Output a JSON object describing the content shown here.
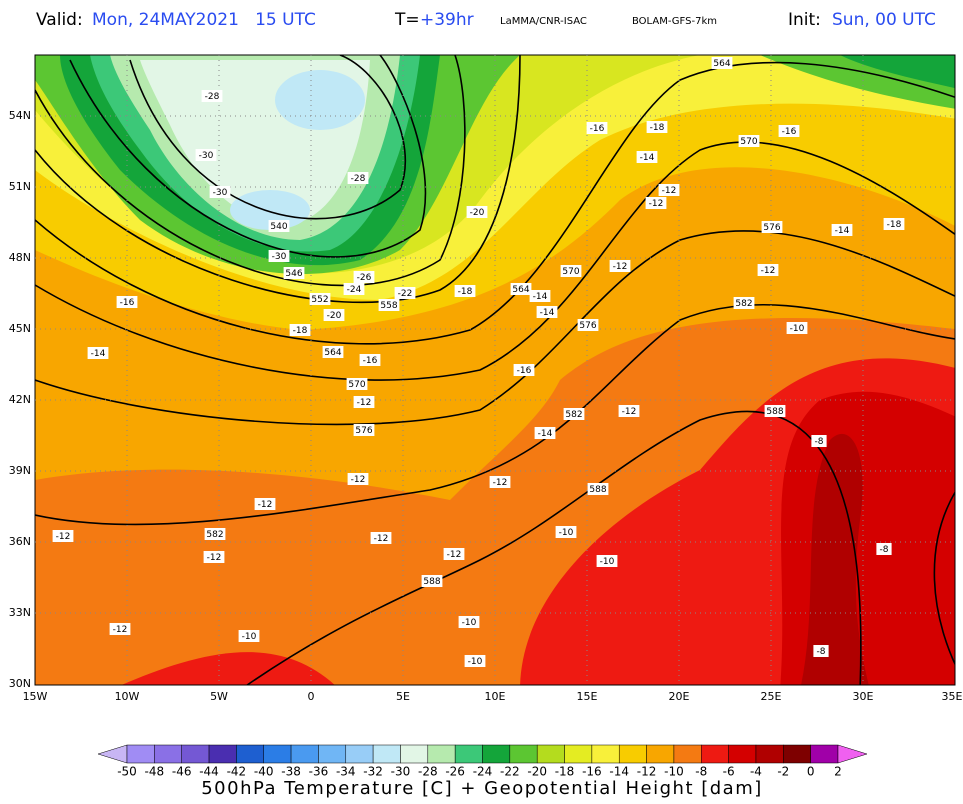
{
  "header": {
    "valid_label": "Valid:",
    "valid_value": "Mon, 24MAY2021   15 UTC",
    "t_label": "T=",
    "t_value": "+39hr",
    "source": "LaMMA/CNR-ISAC",
    "model": "BOLAM-GFS-7km",
    "init_label": "Init:",
    "init_value": "Sun, 00 UTC"
  },
  "map": {
    "lat_labels": [
      "54N",
      "51N",
      "48N",
      "45N",
      "42N",
      "39N",
      "36N",
      "33N",
      "30N"
    ],
    "lon_labels": [
      "15W",
      "10W",
      "5W",
      "0",
      "5E",
      "10E",
      "15E",
      "20E",
      "25E",
      "30E",
      "35E"
    ],
    "temperature_labels": [
      "-28",
      "-30",
      "-30",
      "-28",
      "-30",
      "-26",
      "-24",
      "-22",
      "-20",
      "-18",
      "-16",
      "-14",
      "-16",
      "-12",
      "-18",
      "-20",
      "-16",
      "-18",
      "-14",
      "-16",
      "-12",
      "-12",
      "-14",
      "-18",
      "-12",
      "-12",
      "-10",
      "-14",
      "-14",
      "-16",
      "-12",
      "-14",
      "-12",
      "-12",
      "-12",
      "-12",
      "-12",
      "-12",
      "-12",
      "-10",
      "-10",
      "-12",
      "-10",
      "-10",
      "-10",
      "-8",
      "-8",
      "-8"
    ],
    "height_labels": [
      "564",
      "570",
      "576",
      "582",
      "588",
      "540",
      "546",
      "552",
      "558",
      "564",
      "570",
      "576",
      "564",
      "570",
      "576",
      "582",
      "582",
      "588",
      "588"
    ]
  },
  "colorbar": {
    "ticks": [
      -50,
      -48,
      -46,
      -44,
      -42,
      -40,
      -38,
      -36,
      -34,
      -32,
      -30,
      -28,
      -26,
      -24,
      -22,
      -20,
      -18,
      -16,
      -14,
      -12,
      -10,
      -8,
      -6,
      -4,
      -2,
      0,
      2
    ],
    "colors": [
      "#a08cf4",
      "#8a70e6",
      "#7458d4",
      "#4a2eb0",
      "#1e5fd0",
      "#2b7de6",
      "#4a9af0",
      "#70b6f5",
      "#98cdf7",
      "#c0e8f6",
      "#e2f6e6",
      "#b6eaae",
      "#3cc878",
      "#14a53a",
      "#5cc632",
      "#b4dc1e",
      "#e4ec22",
      "#f8f03a",
      "#f8cc00",
      "#f8a600",
      "#f47a12",
      "#ee1a12",
      "#d40000",
      "#b00000",
      "#7e0000",
      "#a000a8"
    ],
    "under_color": "#c8b6f4",
    "over_color": "#f060f0",
    "caption": "500hPa Temperature [C] + Geopotential Height [dam]"
  }
}
